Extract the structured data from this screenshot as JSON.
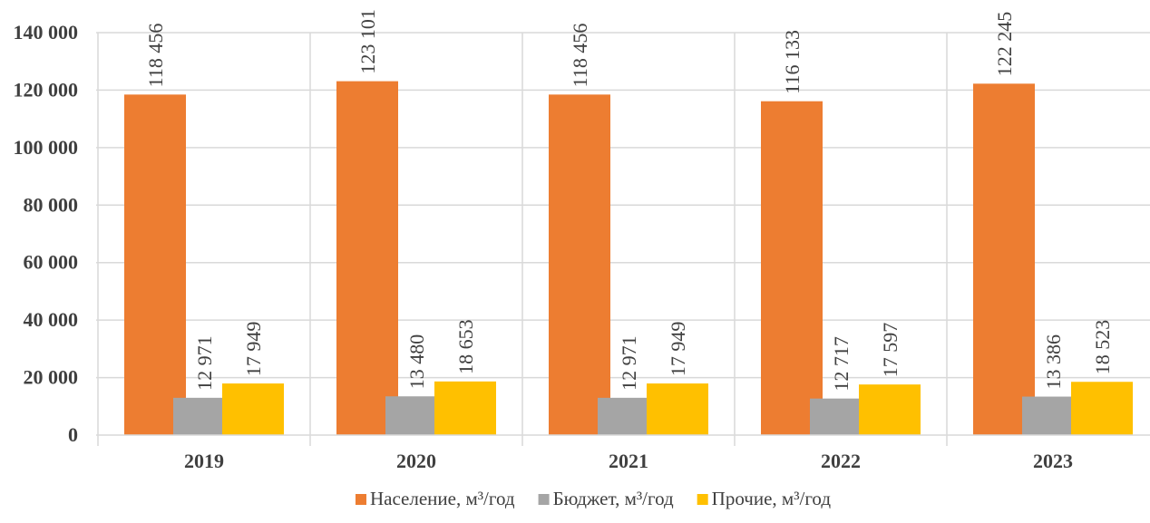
{
  "chart_data": {
    "type": "bar",
    "title": "",
    "xlabel": "",
    "ylabel": "",
    "categories": [
      "2019",
      "2020",
      "2021",
      "2022",
      "2023"
    ],
    "series": [
      {
        "name": "Население, м³/год",
        "color": "#ED7D31",
        "values": [
          118456,
          123101,
          118456,
          116133,
          122245
        ],
        "labels": [
          "118 456",
          "123 101",
          "118 456",
          "116 133",
          "122 245"
        ]
      },
      {
        "name": "Бюджет, м³/год",
        "color": "#A5A5A5",
        "values": [
          12971,
          13480,
          12971,
          12717,
          13386
        ],
        "labels": [
          "12 971",
          "13 480",
          "12 971",
          "12 717",
          "13 386"
        ]
      },
      {
        "name": "Прочие, м³/год",
        "color": "#FFC000",
        "values": [
          17949,
          18653,
          17949,
          17597,
          18523
        ],
        "labels": [
          "17 949",
          "18 653",
          "17 949",
          "17 597",
          "18 523"
        ]
      }
    ],
    "ylim": [
      0,
      140000
    ],
    "yticks": [
      0,
      20000,
      40000,
      60000,
      80000,
      100000,
      120000,
      140000
    ],
    "ytick_labels": [
      "0",
      "20 000",
      "40 000",
      "60 000",
      "80 000",
      "100 000",
      "120 000",
      "140 000"
    ],
    "grid": true,
    "gridline_color": "#D9D9D9",
    "legend_position": "bottom"
  }
}
